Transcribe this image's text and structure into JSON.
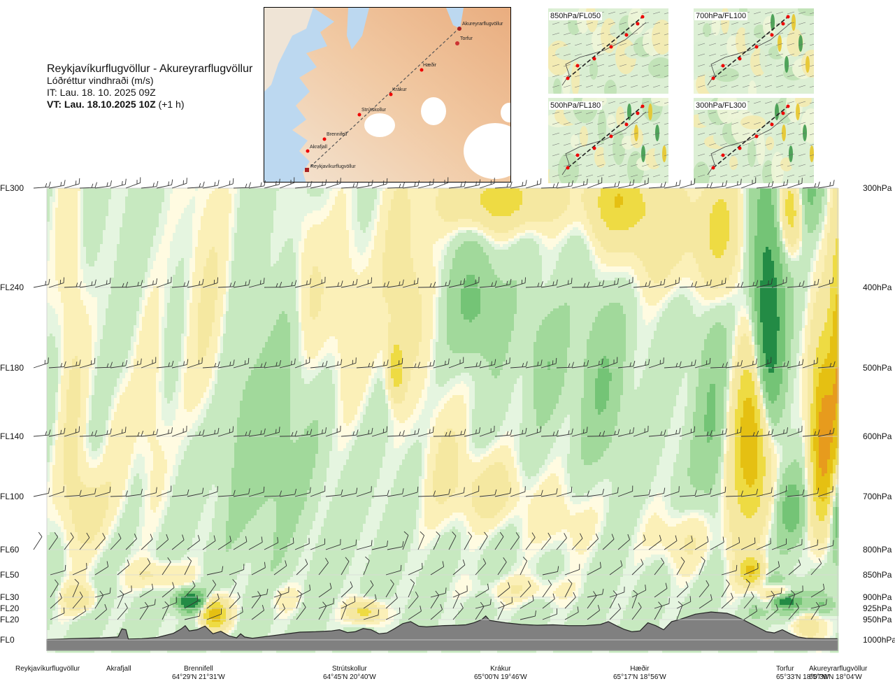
{
  "header": {
    "route": "Reykjavíkurflugvöllur - Akureyrarflugvöllur",
    "variable": "Lóðréttur vindhraði (m/s)",
    "issue_time": "IT: Lau. 18. 10. 2025 09Z",
    "valid_label": "VT: Lau. 18.10.2025 10Z",
    "valid_offset": "(+1 h)"
  },
  "map": {
    "places": [
      "Akureyrarflugvöllur",
      "Torfur",
      "Hæðir",
      "Krákur",
      "Strútskollur",
      "Brennifell",
      "Akrafjall",
      "Reykjavíkurflugvöllur"
    ]
  },
  "mini_maps": [
    {
      "label": "850hPa/FL050"
    },
    {
      "label": "700hPa/FL100"
    },
    {
      "label": "500hPa/FL180"
    },
    {
      "label": "300hPa/FL300"
    }
  ],
  "chart_data": {
    "type": "heatmap",
    "title": "Lóðréttur vindhraði (m/s)",
    "y_left_labels": [
      "FL300",
      "FL240",
      "FL180",
      "FL140",
      "FL100",
      "FL60",
      "FL50",
      "FL30",
      "FL20",
      "FL20",
      "FL0"
    ],
    "y_right_labels": [
      "300hPa",
      "400hPa",
      "500hPa",
      "600hPa",
      "700hPa",
      "800hPa",
      "850hPa",
      "900hPa",
      "925hPa",
      "950hPa",
      "1000hPa"
    ],
    "pressure_levels_hpa": [
      300,
      400,
      500,
      600,
      700,
      800,
      850,
      900,
      925,
      950,
      1000
    ],
    "x_range": [
      0,
      100
    ],
    "waypoints": [
      {
        "name": "Reykjavíkurflugvöllur",
        "coord": "",
        "x": 0
      },
      {
        "name": "Akrafjall",
        "coord": "",
        "x": 9
      },
      {
        "name": "Brennifell",
        "coord": "64°29'N 21°31'W",
        "x": 19
      },
      {
        "name": "Strútskollur",
        "coord": "64°45'N 20°40'W",
        "x": 38
      },
      {
        "name": "Krákur",
        "coord": "65°00'N 19°46'W",
        "x": 55
      },
      {
        "name": "Hæðir",
        "coord": "65°17'N 18°56'W",
        "x": 73
      },
      {
        "name": "Torfur",
        "coord": "65°33'N 18°07'W",
        "x": 93
      },
      {
        "name": "Akureyrarflugvöllur",
        "coord": "65°39'N 18°04'W",
        "x": 100
      }
    ],
    "terrain_pressure_hpa": [
      [
        0,
        999
      ],
      [
        2,
        998
      ],
      [
        3,
        997
      ],
      [
        5,
        996
      ],
      [
        7,
        995
      ],
      [
        9,
        993
      ],
      [
        9.5,
        973
      ],
      [
        10,
        975
      ],
      [
        10.3,
        998
      ],
      [
        12,
        997
      ],
      [
        14,
        994
      ],
      [
        16,
        984
      ],
      [
        17,
        973
      ],
      [
        17.5,
        965
      ],
      [
        18,
        978
      ],
      [
        19,
        975
      ],
      [
        20,
        966
      ],
      [
        21,
        985
      ],
      [
        22,
        979
      ],
      [
        23,
        990
      ],
      [
        24,
        995
      ],
      [
        24.5,
        985
      ],
      [
        25,
        993
      ],
      [
        26,
        996
      ],
      [
        28,
        991
      ],
      [
        30,
        986
      ],
      [
        32,
        981
      ],
      [
        34,
        980
      ],
      [
        36,
        978
      ],
      [
        37,
        975
      ],
      [
        38,
        982
      ],
      [
        39,
        980
      ],
      [
        40,
        972
      ],
      [
        41,
        975
      ],
      [
        42,
        985
      ],
      [
        43,
        983
      ],
      [
        44,
        972
      ],
      [
        45,
        960
      ],
      [
        46,
        955
      ],
      [
        47,
        966
      ],
      [
        48,
        968
      ],
      [
        50,
        965
      ],
      [
        52,
        964
      ],
      [
        53,
        963
      ],
      [
        54,
        958
      ],
      [
        55,
        950
      ],
      [
        55.5,
        942
      ],
      [
        56,
        952
      ],
      [
        58,
        958
      ],
      [
        60,
        962
      ],
      [
        62,
        964
      ],
      [
        64,
        963
      ],
      [
        66,
        965
      ],
      [
        68,
        965
      ],
      [
        70,
        962
      ],
      [
        71,
        955
      ],
      [
        72,
        965
      ],
      [
        73,
        974
      ],
      [
        74,
        980
      ],
      [
        75,
        978
      ],
      [
        76,
        958
      ],
      [
        77,
        965
      ],
      [
        78,
        975
      ],
      [
        79,
        955
      ],
      [
        80,
        950
      ],
      [
        82,
        938
      ],
      [
        84,
        933
      ],
      [
        86,
        936
      ],
      [
        87,
        942
      ],
      [
        88,
        950
      ],
      [
        89,
        960
      ],
      [
        90,
        970
      ],
      [
        91,
        980
      ],
      [
        92,
        983
      ],
      [
        93,
        975
      ],
      [
        94,
        985
      ],
      [
        95,
        993
      ],
      [
        96,
        996
      ],
      [
        98,
        997
      ],
      [
        100,
        997
      ]
    ],
    "cells": [
      {
        "x": 3,
        "p": 500,
        "rx": 2,
        "rp": 300,
        "v": 0.3
      },
      {
        "x": 5,
        "p": 720,
        "rx": 3,
        "rp": 80,
        "v": 0.35
      },
      {
        "x": 9,
        "p": 620,
        "rx": 2,
        "rp": 120,
        "v": 0.2
      },
      {
        "x": 4,
        "p": 900,
        "rx": 2,
        "rp": 30,
        "v": 0.5
      },
      {
        "x": 13,
        "p": 560,
        "rx": 2,
        "rp": 150,
        "v": 0.25
      },
      {
        "x": 14,
        "p": 850,
        "rx": 4,
        "rp": 30,
        "v": 0.35
      },
      {
        "x": 20,
        "p": 420,
        "rx": 3,
        "rp": 180,
        "v": 0.3
      },
      {
        "x": 27,
        "p": 600,
        "rx": 5,
        "rp": 150,
        "v": -0.3
      },
      {
        "x": 18,
        "p": 905,
        "rx": 1.7,
        "rp": 22,
        "v": -1.6
      },
      {
        "x": 21,
        "p": 935,
        "rx": 1.7,
        "rp": 35,
        "v": 1.4
      },
      {
        "x": 33,
        "p": 390,
        "rx": 2,
        "rp": 90,
        "v": 0.3
      },
      {
        "x": 30,
        "p": 900,
        "rx": 2,
        "rp": 30,
        "v": 0.2
      },
      {
        "x": 38,
        "p": 440,
        "rx": 3,
        "rp": 120,
        "v": 0.3
      },
      {
        "x": 44,
        "p": 500,
        "rx": 1,
        "rp": 40,
        "v": 0.9
      },
      {
        "x": 45,
        "p": 400,
        "rx": 3,
        "rp": 120,
        "v": 0.45
      },
      {
        "x": 50,
        "p": 640,
        "rx": 3,
        "rp": 120,
        "v": 0.3
      },
      {
        "x": 40,
        "p": 930,
        "rx": 2,
        "rp": 25,
        "v": 0.9
      },
      {
        "x": 56,
        "p": 690,
        "rx": 4,
        "rp": 60,
        "v": 0.45
      },
      {
        "x": 54,
        "p": 420,
        "rx": 3,
        "rp": 60,
        "v": -0.5
      },
      {
        "x": 57,
        "p": 310,
        "rx": 7,
        "rp": 30,
        "v": 0.9
      },
      {
        "x": 63,
        "p": 490,
        "rx": 2,
        "rp": 60,
        "v": -0.35
      },
      {
        "x": 70,
        "p": 520,
        "rx": 2.5,
        "rp": 100,
        "v": -0.4
      },
      {
        "x": 65,
        "p": 740,
        "rx": 4,
        "rp": 70,
        "v": 0.25
      },
      {
        "x": 72,
        "p": 310,
        "rx": 4,
        "rp": 40,
        "v": 0.9
      },
      {
        "x": 78,
        "p": 340,
        "rx": 6,
        "rp": 60,
        "v": 0.5
      },
      {
        "x": 85,
        "p": 340,
        "rx": 2.5,
        "rp": 60,
        "v": 0.7
      },
      {
        "x": 84,
        "p": 580,
        "rx": 2,
        "rp": 140,
        "v": -0.4
      },
      {
        "x": 87,
        "p": 720,
        "rx": 2,
        "rp": 120,
        "v": 0.4
      },
      {
        "x": 89,
        "p": 600,
        "rx": 2.2,
        "rp": 130,
        "v": 1.5
      },
      {
        "x": 91,
        "p": 440,
        "rx": 1.8,
        "rp": 130,
        "v": -1.5
      },
      {
        "x": 94,
        "p": 320,
        "rx": 1.5,
        "rp": 40,
        "v": 1.0
      },
      {
        "x": 94,
        "p": 720,
        "rx": 1.6,
        "rp": 60,
        "v": -0.6
      },
      {
        "x": 98,
        "p": 600,
        "rx": 1.6,
        "rp": 140,
        "v": 1.9
      },
      {
        "x": 96,
        "p": 300,
        "rx": 1.8,
        "rp": 40,
        "v": -0.5
      },
      {
        "x": 100,
        "p": 480,
        "rx": 1.2,
        "rp": 150,
        "v": 1.4
      },
      {
        "x": 100,
        "p": 720,
        "rx": 1.2,
        "rp": 80,
        "v": -0.8
      },
      {
        "x": 92,
        "p": 900,
        "rx": 2,
        "rp": 25,
        "v": 1.2
      },
      {
        "x": 92,
        "p": 860,
        "rx": 2,
        "rp": 18,
        "v": -0.2
      },
      {
        "x": 93,
        "p": 910,
        "rx": 3,
        "rp": 28,
        "v": -0.8
      },
      {
        "x": 93,
        "p": 905,
        "rx": 1.5,
        "rp": 14,
        "v": -1.5
      },
      {
        "x": 98,
        "p": 915,
        "rx": 1.5,
        "rp": 20,
        "v": -0.4
      },
      {
        "x": 96,
        "p": 960,
        "rx": 1.8,
        "rp": 40,
        "v": 0.6
      },
      {
        "x": 89,
        "p": 840,
        "rx": 1.5,
        "rp": 30,
        "v": 1.1
      },
      {
        "x": 80,
        "p": 780,
        "rx": 4,
        "rp": 60,
        "v": 0.3
      },
      {
        "x": 60,
        "p": 880,
        "rx": 6,
        "rp": 30,
        "v": 0.25
      }
    ],
    "color_scale": [
      {
        "max": -1.0,
        "color": "#238b45"
      },
      {
        "max": -0.5,
        "color": "#74c476"
      },
      {
        "max": -0.2,
        "color": "#a1d99b"
      },
      {
        "max": -0.05,
        "color": "#c7e9c0"
      },
      {
        "max": 0.0,
        "color": "#e5f5e0"
      },
      {
        "max": 0.05,
        "color": "#fffbe1"
      },
      {
        "max": 0.2,
        "color": "#fbf0b8"
      },
      {
        "max": 0.6,
        "color": "#f5e8a1"
      },
      {
        "max": 1.0,
        "color": "#eedb43"
      },
      {
        "max": 1.5,
        "color": "#e5c012"
      },
      {
        "max": 2.0,
        "color": "#e79b1d"
      },
      {
        "max": 99,
        "color": "#c56f2a"
      }
    ],
    "baseline_field": -0.1,
    "terrain_color": "#808080",
    "wind_barbs": "shown at each pressure level"
  }
}
